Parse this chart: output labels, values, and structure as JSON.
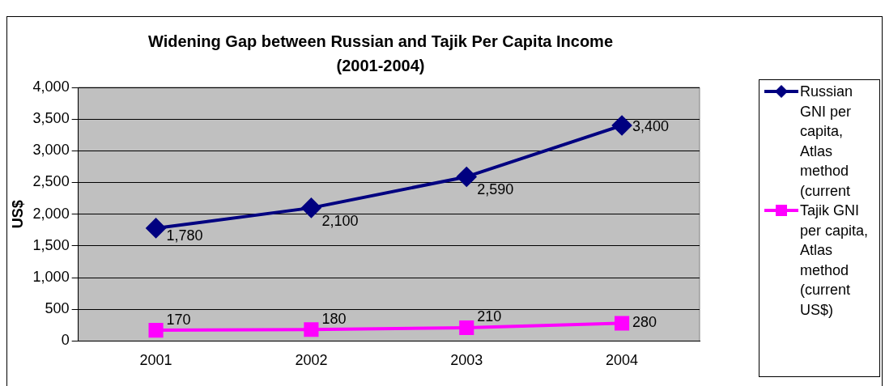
{
  "chart_data": {
    "type": "line",
    "title": "Widening Gap between Russian and Tajik Per Capita Income (2001-2004)",
    "ylabel": "US$",
    "categories": [
      "2001",
      "2002",
      "2003",
      "2004"
    ],
    "series": [
      {
        "name": "Russian GNI per capita, Atlas method (current",
        "color": "#000080",
        "values": [
          1780,
          2100,
          2590,
          3400
        ],
        "value_labels": [
          "1,780",
          "2,100",
          "2,590",
          "3,400"
        ],
        "marker": "diamond"
      },
      {
        "name": "Tajik GNI per capita, Atlas method (current US$)",
        "color": "#ff00ff",
        "values": [
          170,
          180,
          210,
          280
        ],
        "value_labels": [
          "170",
          "180",
          "210",
          "280"
        ],
        "marker": "square"
      }
    ],
    "ylim": [
      0,
      4000
    ],
    "yticks": [
      {
        "value": 0,
        "label": "0"
      },
      {
        "value": 500,
        "label": "500"
      },
      {
        "value": 1000,
        "label": "1,000"
      },
      {
        "value": 1500,
        "label": "1,500"
      },
      {
        "value": 2000,
        "label": "2,000"
      },
      {
        "value": 2500,
        "label": "2,500"
      },
      {
        "value": 3000,
        "label": "3,000"
      },
      {
        "value": 3500,
        "label": "3,500"
      },
      {
        "value": 4000,
        "label": "4,000"
      }
    ],
    "grid": "y",
    "legend": "right"
  }
}
